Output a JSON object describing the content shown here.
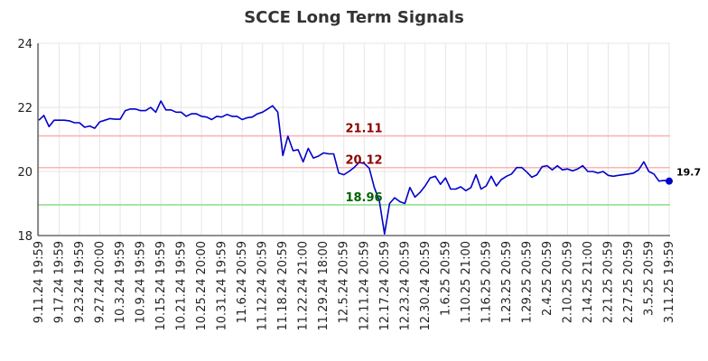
{
  "chart_data": {
    "type": "line",
    "title": "SCCE Long Term Signals",
    "xlabel": "",
    "ylabel": "",
    "ylim": [
      18,
      24
    ],
    "yticks": [
      18,
      20,
      22,
      24
    ],
    "grid": true,
    "x_tick_labels": [
      "9.11.24 19:59",
      "9.17.24 19:59",
      "9.23.24 19:59",
      "9.27.24 20:00",
      "10.3.24 19:59",
      "10.9.24 19:59",
      "10.15.24 19:59",
      "10.21.24 19:59",
      "10.25.24 20:00",
      "10.31.24 19:59",
      "11.6.24 20:59",
      "11.12.24 20:59",
      "11.18.24 20:59",
      "11.22.24 21:00",
      "11.29.24 18:00",
      "12.5.24 20:59",
      "12.11.24 20:59",
      "12.17.24 20:59",
      "12.23.24 20:59",
      "12.30.24 20:59",
      "1.6.25 20:59",
      "1.10.25 21:00",
      "1.16.25 20:59",
      "1.23.25 20:59",
      "1.29.25 20:59",
      "2.4.25 20:59",
      "2.10.25 20:59",
      "2.14.25 21:00",
      "2.21.25 20:59",
      "2.27.25 20:59",
      "3.5.25 20:59",
      "3.11.25 19:59"
    ],
    "reference_lines": [
      {
        "value": 21.11,
        "label": "21.11",
        "line_color": "#ffb3b3",
        "label_color": "#8b0000"
      },
      {
        "value": 20.12,
        "label": "20.12",
        "line_color": "#ffb3b3",
        "label_color": "#8b0000"
      },
      {
        "value": 18.96,
        "label": "18.96",
        "line_color": "#90e090",
        "label_color": "#006400"
      }
    ],
    "series": [
      {
        "color": "#0000cc",
        "values": [
          21.6,
          21.75,
          21.4,
          21.6,
          21.6,
          21.6,
          21.58,
          21.52,
          21.52,
          21.38,
          21.42,
          21.35,
          21.55,
          21.6,
          21.65,
          21.63,
          21.63,
          21.9,
          21.95,
          21.95,
          21.9,
          21.9,
          22.0,
          21.85,
          22.2,
          21.92,
          21.92,
          21.85,
          21.85,
          21.72,
          21.8,
          21.8,
          21.72,
          21.7,
          21.62,
          21.72,
          21.7,
          21.78,
          21.72,
          21.72,
          21.62,
          21.68,
          21.7,
          21.8,
          21.85,
          21.95,
          22.05,
          21.85,
          20.5,
          21.1,
          20.65,
          20.68,
          20.3,
          20.72,
          20.42,
          20.48,
          20.58,
          20.55,
          20.55,
          19.95,
          19.9,
          20.0,
          20.12,
          20.28,
          20.25,
          20.1,
          19.5,
          19.08,
          18.05,
          19.0,
          19.18,
          19.06,
          19.0,
          19.5,
          19.2,
          19.35,
          19.55,
          19.8,
          19.85,
          19.6,
          19.8,
          19.45,
          19.45,
          19.52,
          19.4,
          19.5,
          19.9,
          19.45,
          19.55,
          19.85,
          19.55,
          19.75,
          19.85,
          19.92,
          20.12,
          20.12,
          19.98,
          19.82,
          19.9,
          20.15,
          20.18,
          20.05,
          20.18,
          20.05,
          20.08,
          20.02,
          20.08,
          20.18,
          20.0,
          20.0,
          19.95,
          20.0,
          19.88,
          19.85,
          19.88,
          19.9,
          19.92,
          19.95,
          20.05,
          20.3,
          20.0,
          19.92,
          19.7,
          19.72,
          19.7
        ]
      }
    ],
    "last_value_label": "19.7"
  }
}
